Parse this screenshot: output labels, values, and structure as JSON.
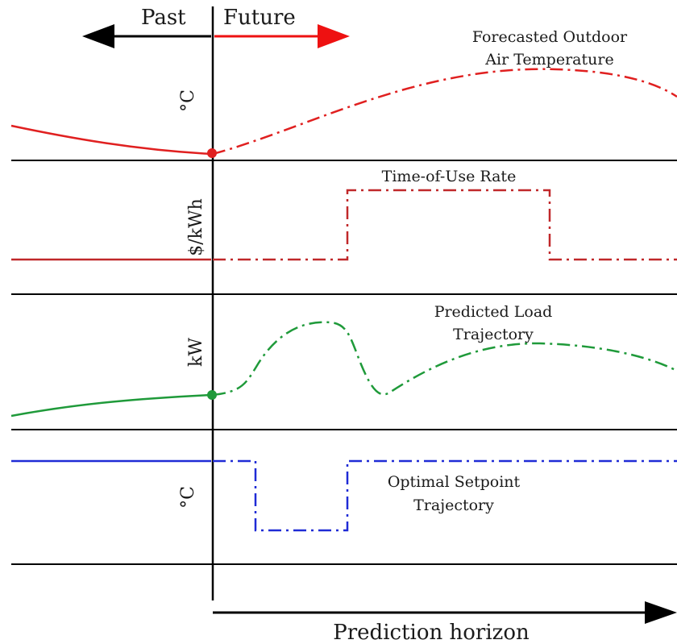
{
  "header": {
    "past_label": "Past",
    "future_label": "Future"
  },
  "axis": {
    "horizon_label": "Prediction horizon"
  },
  "panels": [
    {
      "unit_label": "°C",
      "annotation_lines": [
        "Forecasted Outdoor",
        "Air Temperature"
      ],
      "color": "#e02020"
    },
    {
      "unit_label": "$/kWh",
      "annotation_lines": [
        "Time-of-Use Rate"
      ],
      "color": "#c0282a"
    },
    {
      "unit_label": "kW",
      "annotation_lines": [
        "Predicted Load",
        "Trajectory"
      ],
      "color": "#1f9a3a"
    },
    {
      "unit_label": "°C",
      "annotation_lines": [
        "Optimal Setpoint",
        "Trajectory"
      ],
      "color": "#1f2bd6"
    }
  ],
  "colors": {
    "line": "#000000",
    "past_arrow": "#000000",
    "future_arrow": "#ee1111"
  }
}
